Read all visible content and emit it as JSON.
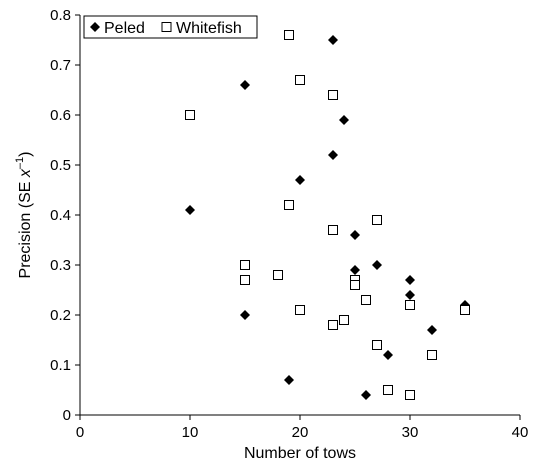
{
  "chart_data": {
    "type": "scatter",
    "xlabel": "Number of tows",
    "ylabel": {
      "main": "Precision (SE ",
      "var": "x",
      "sup": "–1",
      "close": ")"
    },
    "xlim": [
      0,
      40
    ],
    "ylim": [
      0,
      0.8
    ],
    "xticks": [
      "0",
      "10",
      "20",
      "30",
      "40"
    ],
    "yticks": [
      "0",
      "0.1",
      "0.2",
      "0.3",
      "0.4",
      "0.5",
      "0.6",
      "0.7",
      "0.8"
    ],
    "grid": false,
    "legend_placement": "top-left",
    "series": [
      {
        "name": "Peled",
        "marker": "diamond-filled",
        "color": "#000000",
        "points": [
          [
            10,
            0.41
          ],
          [
            15,
            0.66
          ],
          [
            15,
            0.2
          ],
          [
            19,
            0.07
          ],
          [
            20,
            0.47
          ],
          [
            23,
            0.75
          ],
          [
            23,
            0.52
          ],
          [
            24,
            0.59
          ],
          [
            25,
            0.36
          ],
          [
            25,
            0.29
          ],
          [
            26,
            0.04
          ],
          [
            27,
            0.3
          ],
          [
            28,
            0.12
          ],
          [
            30,
            0.27
          ],
          [
            30,
            0.24
          ],
          [
            32,
            0.17
          ],
          [
            35,
            0.22
          ]
        ]
      },
      {
        "name": "Whitefish",
        "marker": "square-open",
        "color": "#000000",
        "points": [
          [
            10,
            0.6
          ],
          [
            15,
            0.3
          ],
          [
            15,
            0.27
          ],
          [
            18,
            0.28
          ],
          [
            19,
            0.76
          ],
          [
            19,
            0.42
          ],
          [
            20,
            0.67
          ],
          [
            20,
            0.21
          ],
          [
            23,
            0.64
          ],
          [
            23,
            0.37
          ],
          [
            23,
            0.18
          ],
          [
            24,
            0.19
          ],
          [
            25,
            0.27
          ],
          [
            25,
            0.26
          ],
          [
            26,
            0.23
          ],
          [
            27,
            0.39
          ],
          [
            27,
            0.14
          ],
          [
            28,
            0.05
          ],
          [
            30,
            0.22
          ],
          [
            30,
            0.04
          ],
          [
            32,
            0.12
          ],
          [
            35,
            0.21
          ]
        ]
      }
    ]
  }
}
